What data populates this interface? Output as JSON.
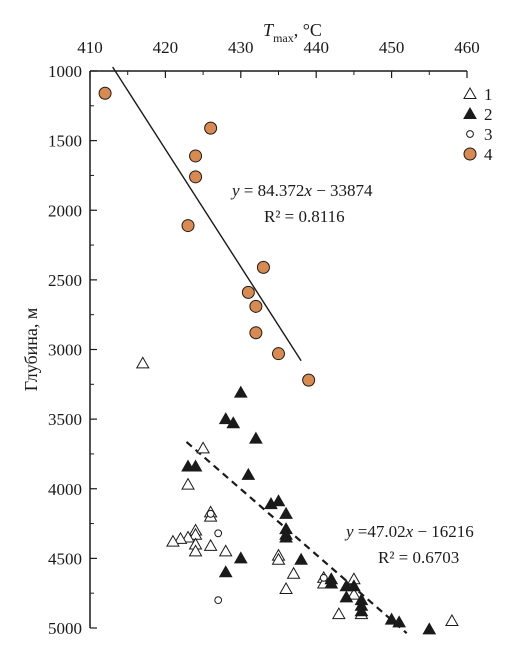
{
  "chart_data": {
    "type": "scatter",
    "x_axis": {
      "label_symbol": "T",
      "label_sub": "max",
      "label_unit": ", °C",
      "position": "top",
      "range": [
        410,
        460
      ],
      "ticks": [
        410,
        420,
        430,
        440,
        450,
        460
      ]
    },
    "y_axis": {
      "label": "Глубина, м",
      "range": [
        1000,
        5000
      ],
      "inverted": true,
      "ticks": [
        1000,
        1500,
        2000,
        2500,
        3000,
        3500,
        4000,
        4500,
        5000
      ]
    },
    "grid": false,
    "legend_position": "top-right",
    "series": [
      {
        "name": "1",
        "marker": "triangle-open",
        "points": [
          [
            417,
            3100
          ],
          [
            425,
            3710
          ],
          [
            423,
            3970
          ],
          [
            426,
            4170
          ],
          [
            426,
            4200
          ],
          [
            424,
            4300
          ],
          [
            424,
            4330
          ],
          [
            423,
            4350
          ],
          [
            422,
            4360
          ],
          [
            421,
            4380
          ],
          [
            424,
            4400
          ],
          [
            426,
            4410
          ],
          [
            424,
            4450
          ],
          [
            428,
            4450
          ],
          [
            435,
            4480
          ],
          [
            435,
            4510
          ],
          [
            437,
            4610
          ],
          [
            441,
            4640
          ],
          [
            441,
            4680
          ],
          [
            445,
            4650
          ],
          [
            445,
            4760
          ],
          [
            436,
            4720
          ],
          [
            443,
            4900
          ],
          [
            446,
            4900
          ],
          [
            458,
            4950
          ]
        ]
      },
      {
        "name": "2",
        "marker": "triangle-filled",
        "points": [
          [
            430,
            3310
          ],
          [
            428,
            3500
          ],
          [
            429,
            3530
          ],
          [
            432,
            3640
          ],
          [
            423,
            3840
          ],
          [
            424,
            3840
          ],
          [
            431,
            3900
          ],
          [
            434,
            4110
          ],
          [
            435,
            4090
          ],
          [
            436,
            4180
          ],
          [
            436,
            4290
          ],
          [
            436,
            4330
          ],
          [
            436,
            4350
          ],
          [
            430,
            4500
          ],
          [
            438,
            4510
          ],
          [
            428,
            4600
          ],
          [
            442,
            4650
          ],
          [
            442,
            4680
          ],
          [
            444,
            4700
          ],
          [
            444,
            4780
          ],
          [
            445,
            4700
          ],
          [
            446,
            4800
          ],
          [
            446,
            4840
          ],
          [
            446,
            4880
          ],
          [
            450,
            4940
          ],
          [
            451,
            4960
          ],
          [
            455,
            5010
          ]
        ]
      },
      {
        "name": "3",
        "marker": "circle-open",
        "points": [
          [
            426,
            4180
          ],
          [
            427,
            4320
          ],
          [
            441,
            4640
          ],
          [
            427,
            4800
          ]
        ]
      },
      {
        "name": "4",
        "marker": "circle-filled",
        "points": [
          [
            412,
            1160
          ],
          [
            426,
            1410
          ],
          [
            424,
            1610
          ],
          [
            424,
            1760
          ],
          [
            423,
            2110
          ],
          [
            433,
            2410
          ],
          [
            431,
            2590
          ],
          [
            432,
            2690
          ],
          [
            432,
            2880
          ],
          [
            435,
            3030
          ],
          [
            439,
            3220
          ]
        ]
      }
    ],
    "trendlines": [
      {
        "series": "4",
        "style": "solid",
        "x_range": [
          413,
          438
        ],
        "equation": "y = 84.372x − 33874",
        "r2_label": "R² = 0.8116"
      },
      {
        "series": "2",
        "style": "dashed",
        "x_range": [
          422.8,
          452
        ],
        "equation": "y =47.02x − 16216",
        "r2_label": "R² = 0.6703"
      }
    ],
    "colors": {
      "marker_fill": "#d88a50",
      "marker_stroke": "#1a1a1a",
      "axis": "#1a1a1a",
      "trend": "#1a1a1a"
    }
  }
}
